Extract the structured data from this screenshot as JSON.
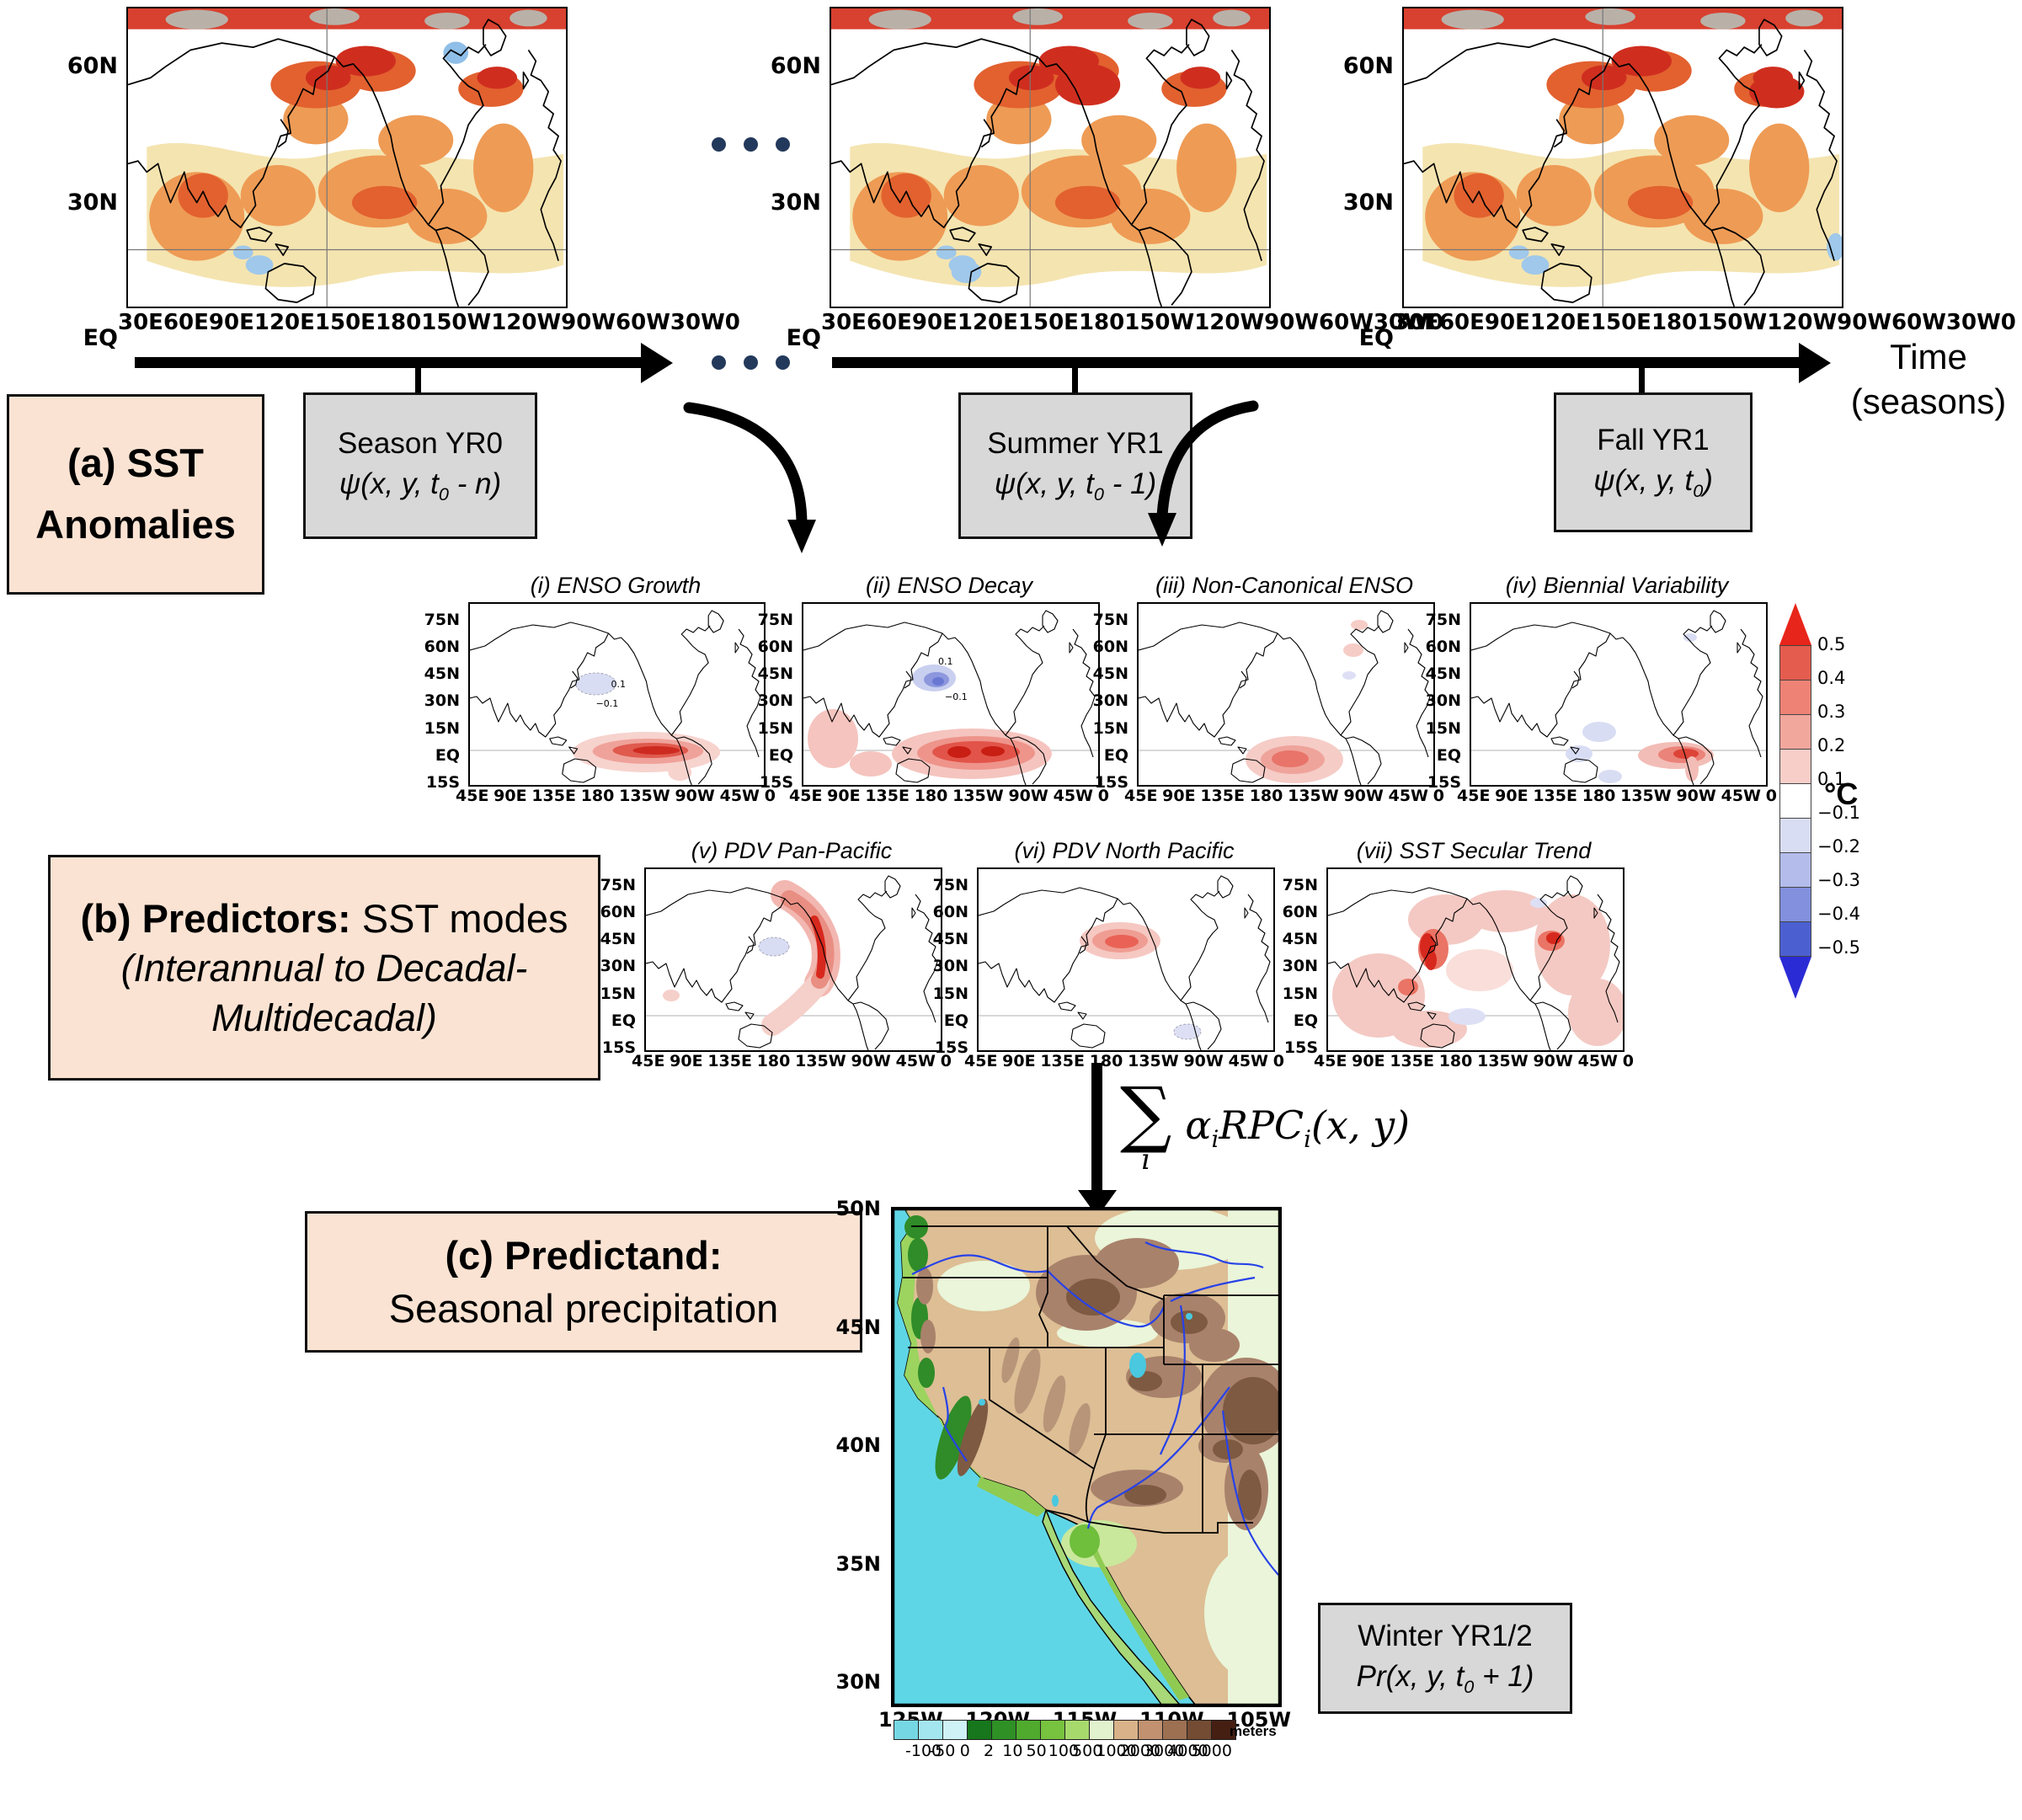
{
  "colors": {
    "label_box_fill": "#FBE3D3",
    "season_box_fill": "#D8D8D8",
    "timeline_dot_navy": "#23395B",
    "colorbar_red_max": "#E8251A",
    "colorbar_blue_min": "#2B2BD6"
  },
  "panel_a": {
    "label": {
      "line1": "(a) SST",
      "line2": "Anomalies"
    },
    "map_y_ticks": [
      "60N",
      "30N",
      "EQ"
    ],
    "map_x_ticks": [
      "30E",
      "60E",
      "90E",
      "120E",
      "150E",
      "180",
      "150W",
      "120W",
      "90W",
      "60W",
      "30W",
      "0"
    ],
    "season_boxes": [
      {
        "title": "Season YR0",
        "f_pre": "ψ(x, y, t",
        "f_sub": "0",
        "f_post": " - n)"
      },
      {
        "title": "Summer YR1",
        "f_pre": "ψ(x, y, t",
        "f_sub": "0",
        "f_post": " - 1)"
      },
      {
        "title": "Fall YR1",
        "f_pre": "ψ(x, y, t",
        "f_sub": "0",
        "f_post": ")"
      }
    ],
    "time_label": {
      "line1": "Time",
      "line2": "(seasons)"
    }
  },
  "panel_b": {
    "label": {
      "bold": "(b) Predictors:",
      "regular": " SST modes",
      "italic1": "(Interannual to Decadal-",
      "italic2": "Multidecadal)"
    },
    "map_titles": [
      "(i) ENSO Growth",
      "(ii) ENSO Decay",
      "(iii) Non-Canonical ENSO",
      "(iv) Biennial Variability",
      "(v) PDV Pan-Pacific",
      "(vi) PDV North Pacific",
      "(vii) SST Secular Trend"
    ],
    "map_y_ticks": [
      "75N",
      "60N",
      "45N",
      "30N",
      "15N",
      "EQ",
      "15S"
    ],
    "map_x_ticks": [
      "45E",
      "90E",
      "135E",
      "180",
      "135W",
      "90W",
      "45W",
      "0"
    ],
    "contour_labels": {
      "growth_pos": "0.1",
      "growth_neg": "−0.1",
      "decay_pos": "0.1",
      "decay_neg": "−0.1"
    },
    "colorbar": {
      "unit": "°C",
      "ticks": [
        "0.5",
        "0.4",
        "0.3",
        "0.2",
        "0.1",
        "−0.1",
        "−0.2",
        "−0.3",
        "−0.4",
        "−0.5"
      ]
    }
  },
  "formula": {
    "sigma": "∑",
    "sigma_sub": "i",
    "alpha": "α",
    "alpha_sub": "i",
    "rpc": "RPC",
    "rpc_sub": "i",
    "args": "(x, y)"
  },
  "panel_c": {
    "label": {
      "line1": "(c) Predictand:",
      "line2": "Seasonal precipitation"
    },
    "map_y_ticks": [
      "50N",
      "45N",
      "40N",
      "35N",
      "30N"
    ],
    "map_x_ticks": [
      "125W",
      "120W",
      "115W",
      "110W",
      "105W"
    ],
    "result_box": {
      "title": "Winter YR1/2",
      "f_pre": "Pr(x, y, t",
      "f_sub": "0",
      "f_post": " + 1)"
    },
    "colorbar": {
      "unit": "meters",
      "ticks": [
        "-100",
        "-50",
        "0",
        "2",
        "10",
        "50",
        "100",
        "500",
        "1000",
        "2000",
        "3000",
        "4000",
        "5000"
      ]
    }
  }
}
